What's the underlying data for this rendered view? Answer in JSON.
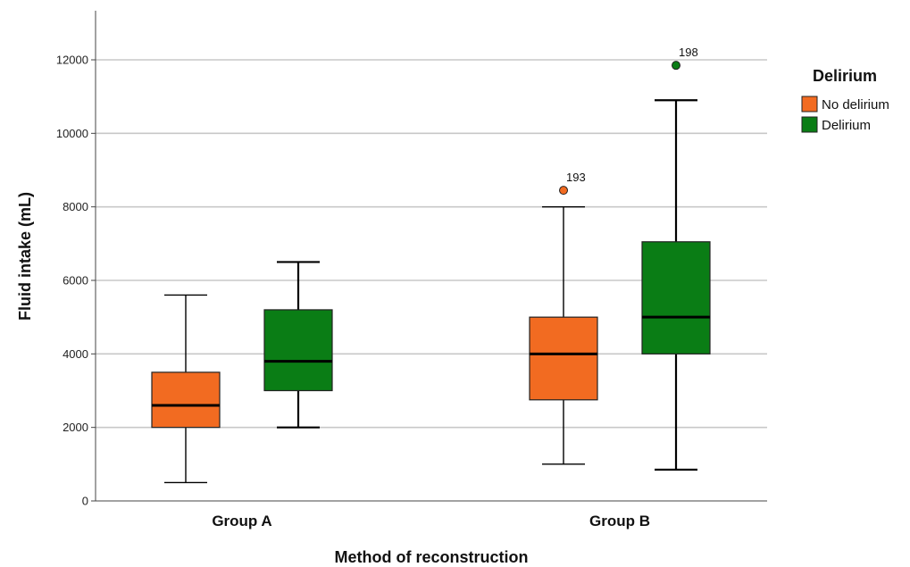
{
  "chart_data": {
    "type": "boxplot",
    "xlabel": "Method of reconstruction",
    "ylabel": "Fluid intake (mL)",
    "ylim": [
      0,
      13000
    ],
    "yticks": [
      0,
      2000,
      4000,
      6000,
      8000,
      10000,
      12000
    ],
    "grid": "horizontal",
    "legend_position": "right",
    "legend_title": "Delirium",
    "categories": [
      "Group A",
      "Group B"
    ],
    "series": [
      {
        "name": "No delirium",
        "color": "#f26b21",
        "boxes": [
          {
            "category": "Group A",
            "min": 500,
            "q1": 2000,
            "median": 2600,
            "q3": 3500,
            "max": 5600,
            "outliers": []
          },
          {
            "category": "Group B",
            "min": 1000,
            "q1": 2750,
            "median": 4000,
            "q3": 5000,
            "max": 8000,
            "outliers": [
              {
                "value": 8450,
                "label": "193"
              }
            ]
          }
        ]
      },
      {
        "name": "Delirium",
        "color": "#0a7d15",
        "boxes": [
          {
            "category": "Group A",
            "min": 2000,
            "q1": 3000,
            "median": 3800,
            "q3": 5200,
            "max": 6500,
            "outliers": []
          },
          {
            "category": "Group B",
            "min": 850,
            "q1": 4000,
            "median": 5000,
            "q3": 7050,
            "max": 10900,
            "outliers": [
              {
                "value": 11850,
                "label": "198"
              }
            ]
          }
        ]
      }
    ]
  }
}
